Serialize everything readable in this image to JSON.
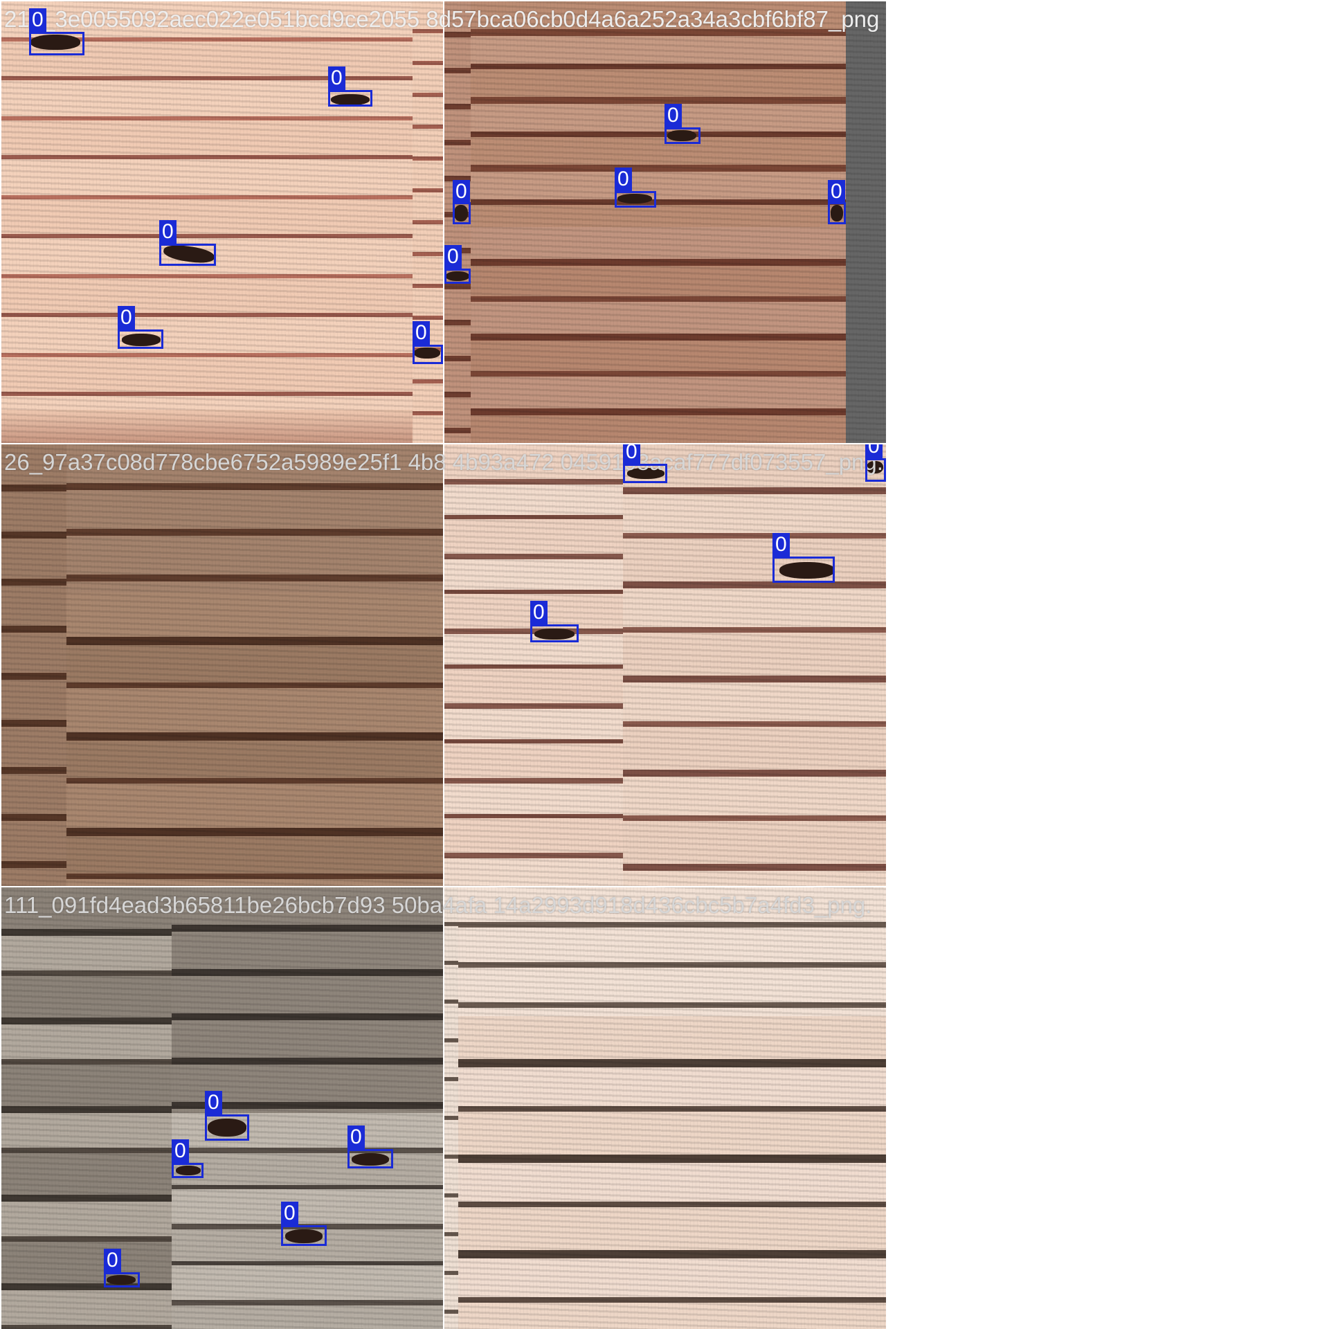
{
  "mosaic": {
    "tiles": [
      {
        "caption": "210_3e0055092aec022e051bcd9ce2055 8d57bca06cb0d4a6a252a34a3cbf6bf87_png",
        "base_color": "#f2c8b0",
        "stripe_color": "#8a4a40",
        "detections": [
          "0",
          "0",
          "0",
          "0",
          "0"
        ]
      },
      {
        "caption": "",
        "base_color": "#b98870",
        "stripe_color": "#6b3a2c",
        "detections": [
          "0",
          "0",
          "0",
          "0",
          "0"
        ]
      },
      {
        "caption": "26_97a37c08d778cbe6752a5989e25f1 4b8 4b93a472 0459193acaf777df073557_png.",
        "base_color": "#9c7b66",
        "stripe_color": "#5a3b2c",
        "detections": []
      },
      {
        "caption": "",
        "base_color": "#ecd0bf",
        "stripe_color": "#7a5148",
        "detections": [
          "0",
          "0",
          "0",
          "0"
        ]
      },
      {
        "caption": "111_091fd4ead3b65811be26bcb7d93 50ba4afa 14a2993d918d436cbc5b7a4fd3_png.",
        "base_color": "#a59c92",
        "stripe_color": "#4a433c",
        "detections": [
          "0",
          "0",
          "0",
          "0",
          "0"
        ]
      },
      {
        "caption": "",
        "base_color": "#efd8c8",
        "stripe_color": "#5a4a40",
        "detections": []
      }
    ]
  },
  "colors": {
    "box": "#1a2bd6",
    "label_text": "#ffffff",
    "caption": "#ededed",
    "pad": "#666666"
  }
}
